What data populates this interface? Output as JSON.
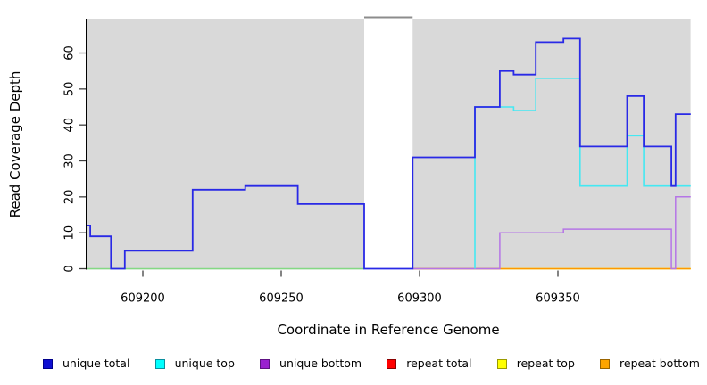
{
  "chart_data": {
    "type": "line",
    "subtype": "step-coverage-plot",
    "title": "",
    "xlabel": "Coordinate in Reference Genome",
    "ylabel": "Read Coverage Depth",
    "x_ticks": [
      609200,
      609250,
      609300,
      609350
    ],
    "y_ticks": [
      0,
      10,
      20,
      30,
      40,
      50,
      60
    ],
    "xlim": [
      609179.7,
      609398
    ],
    "ylim": [
      0,
      69.5
    ],
    "grid": false,
    "plot_bg_color": "#d9d9d9",
    "gap_region": {
      "x_start": 609280,
      "x_end": 609297.5,
      "fill": "#ffffff",
      "top_border_color": "#8c8c8c"
    },
    "series": [
      {
        "name": "baseline green (unlabeled)",
        "color": "#84d884",
        "width": 1.4,
        "points": [
          [
            609179.7,
            0
          ],
          [
            609280,
            0
          ]
        ]
      },
      {
        "name": "repeat top",
        "color": "#ffff00",
        "width": 1.5,
        "points": [
          [
            609297.5,
            0
          ],
          [
            609398,
            0
          ]
        ]
      },
      {
        "name": "repeat total",
        "color": "#bf5a52",
        "width": 1.5,
        "points": [
          [
            609297.5,
            0
          ],
          [
            609329,
            0
          ]
        ]
      },
      {
        "name": "repeat bottom",
        "color": "#ff9800",
        "width": 1.6,
        "points": [
          [
            609329,
            0
          ],
          [
            609398,
            0
          ]
        ]
      },
      {
        "name": "unique bottom",
        "color": "#b575e6",
        "width": 1.5,
        "points": [
          [
            609297.5,
            0
          ],
          [
            609329,
            10
          ],
          [
            609352,
            11
          ],
          [
            609391,
            0
          ],
          [
            609392.5,
            20
          ],
          [
            609398,
            20
          ]
        ]
      },
      {
        "name": "unique top",
        "color": "#44e8f2",
        "width": 1.6,
        "points": [
          [
            609320,
            0
          ],
          [
            609320,
            45
          ],
          [
            609334,
            44
          ],
          [
            609342,
            53
          ],
          [
            609358,
            23
          ],
          [
            609375,
            37
          ],
          [
            609381,
            23
          ],
          [
            609398,
            23
          ]
        ]
      },
      {
        "name": "unique total",
        "color": "#2929e6",
        "width": 1.8,
        "points": [
          [
            609179.7,
            12
          ],
          [
            609181,
            9
          ],
          [
            609188.5,
            0
          ],
          [
            609193.5,
            5
          ],
          [
            609218,
            22
          ],
          [
            609237,
            23
          ],
          [
            609256,
            18
          ],
          [
            609280,
            0
          ],
          [
            609297.5,
            31
          ],
          [
            609320,
            45
          ],
          [
            609329,
            55
          ],
          [
            609334,
            54
          ],
          [
            609342,
            63
          ],
          [
            609352,
            64
          ],
          [
            609358,
            34
          ],
          [
            609375,
            48
          ],
          [
            609381,
            34
          ],
          [
            609391,
            23
          ],
          [
            609392.5,
            43
          ],
          [
            609398,
            43
          ]
        ]
      }
    ],
    "legend_position": "bottom"
  },
  "legend": {
    "items": [
      {
        "label": "unique total",
        "color": "#0f0fd2",
        "border": "#00008b"
      },
      {
        "label": "unique top",
        "color": "#00ffff",
        "border": "#0a8f9e"
      },
      {
        "label": "unique bottom",
        "color": "#9a20d0",
        "border": "#5e1283"
      },
      {
        "label": "repeat total",
        "color": "#ff0000",
        "border": "#8b0000"
      },
      {
        "label": "repeat top",
        "color": "#ffff00",
        "border": "#9a9a00"
      },
      {
        "label": "repeat bottom",
        "color": "#ffa500",
        "border": "#9a6400"
      }
    ]
  },
  "layout_colors": {
    "axis_line": "#000000",
    "tick_mark": "#404040"
  }
}
